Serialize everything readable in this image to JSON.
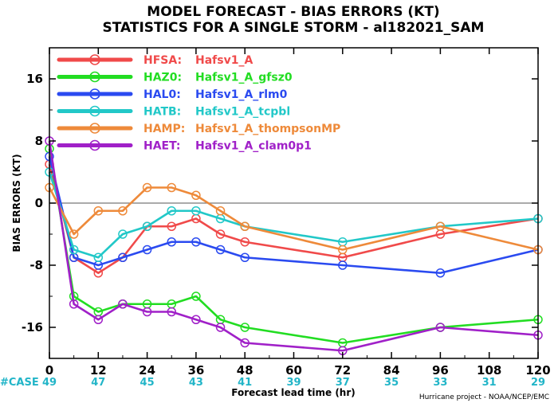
{
  "chart_data": {
    "type": "line",
    "title": "MODEL FORECAST - BIAS ERRORS (KT)",
    "subtitle": "STATISTICS FOR A SINGLE STORM - al182021_SAM",
    "xlabel": "Forecast lead time (hr)",
    "ylabel": "BIAS ERRORS (KT)",
    "xlim": [
      0,
      120
    ],
    "ylim": [
      -20,
      20
    ],
    "xticks": [
      0,
      12,
      24,
      36,
      48,
      60,
      72,
      84,
      96,
      108,
      120
    ],
    "yticks": [
      -16,
      -8,
      0,
      8,
      16
    ],
    "grid": false,
    "zero_line": true,
    "legend_position": "top-left",
    "case_label": "#CASE",
    "case_counts": [
      {
        "x": 0,
        "n": "49"
      },
      {
        "x": 12,
        "n": "47"
      },
      {
        "x": 24,
        "n": "45"
      },
      {
        "x": 36,
        "n": "43"
      },
      {
        "x": 48,
        "n": "41"
      },
      {
        "x": 60,
        "n": "39"
      },
      {
        "x": 72,
        "n": "37"
      },
      {
        "x": 84,
        "n": "35"
      },
      {
        "x": 96,
        "n": "33"
      },
      {
        "x": 108,
        "n": "31"
      },
      {
        "x": 120,
        "n": "29"
      }
    ],
    "credit": "Hurricane project - NOAA/NCEP/EMC",
    "series": [
      {
        "code": "HFSA:",
        "name": "Hafsv1_A",
        "color": "#f04a4a",
        "points": [
          [
            0,
            5
          ],
          [
            6,
            -7
          ],
          [
            12,
            -9
          ],
          [
            18,
            -7
          ],
          [
            24,
            -3
          ],
          [
            30,
            -3
          ],
          [
            36,
            -2
          ],
          [
            42,
            -4
          ],
          [
            48,
            -5
          ],
          [
            72,
            -7
          ],
          [
            96,
            -4
          ],
          [
            120,
            -2
          ]
        ]
      },
      {
        "code": "HAZ0:",
        "name": "Hafsv1_A_gfsz0",
        "color": "#22dd22",
        "points": [
          [
            0,
            7
          ],
          [
            6,
            -12
          ],
          [
            12,
            -14
          ],
          [
            18,
            -13
          ],
          [
            24,
            -13
          ],
          [
            30,
            -13
          ],
          [
            36,
            -12
          ],
          [
            42,
            -15
          ],
          [
            48,
            -16
          ],
          [
            72,
            -18
          ],
          [
            96,
            -16
          ],
          [
            120,
            -15
          ]
        ]
      },
      {
        "code": "HAL0:",
        "name": "Hafsv1_A_rlm0",
        "color": "#2a4af0",
        "points": [
          [
            0,
            6
          ],
          [
            6,
            -7
          ],
          [
            12,
            -8
          ],
          [
            18,
            -7
          ],
          [
            24,
            -6
          ],
          [
            30,
            -5
          ],
          [
            36,
            -5
          ],
          [
            42,
            -6
          ],
          [
            48,
            -7
          ],
          [
            72,
            -8
          ],
          [
            96,
            -9
          ],
          [
            120,
            -6
          ]
        ]
      },
      {
        "code": "HATB:",
        "name": "Hafsv1_A_tcpbl",
        "color": "#22c8c8",
        "points": [
          [
            0,
            4
          ],
          [
            6,
            -6
          ],
          [
            12,
            -7
          ],
          [
            18,
            -4
          ],
          [
            24,
            -3
          ],
          [
            30,
            -1
          ],
          [
            36,
            -1
          ],
          [
            42,
            -2
          ],
          [
            48,
            -3
          ],
          [
            72,
            -5
          ],
          [
            96,
            -3
          ],
          [
            120,
            -2
          ]
        ]
      },
      {
        "code": "HAMP:",
        "name": "Hafsv1_A_thompsonMP",
        "color": "#ee8a3a",
        "points": [
          [
            0,
            2
          ],
          [
            6,
            -4
          ],
          [
            12,
            -1
          ],
          [
            18,
            -1
          ],
          [
            24,
            2
          ],
          [
            30,
            2
          ],
          [
            36,
            1
          ],
          [
            42,
            -1
          ],
          [
            48,
            -3
          ],
          [
            72,
            -6
          ],
          [
            96,
            -3
          ],
          [
            120,
            -6
          ]
        ]
      },
      {
        "code": "HAET:",
        "name": "Hafsv1_A_clam0p1",
        "color": "#a020c8",
        "points": [
          [
            0,
            8
          ],
          [
            6,
            -13
          ],
          [
            12,
            -15
          ],
          [
            18,
            -13
          ],
          [
            24,
            -14
          ],
          [
            30,
            -14
          ],
          [
            36,
            -15
          ],
          [
            42,
            -16
          ],
          [
            48,
            -18
          ],
          [
            72,
            -19
          ],
          [
            96,
            -16
          ],
          [
            120,
            -17
          ]
        ]
      }
    ]
  }
}
